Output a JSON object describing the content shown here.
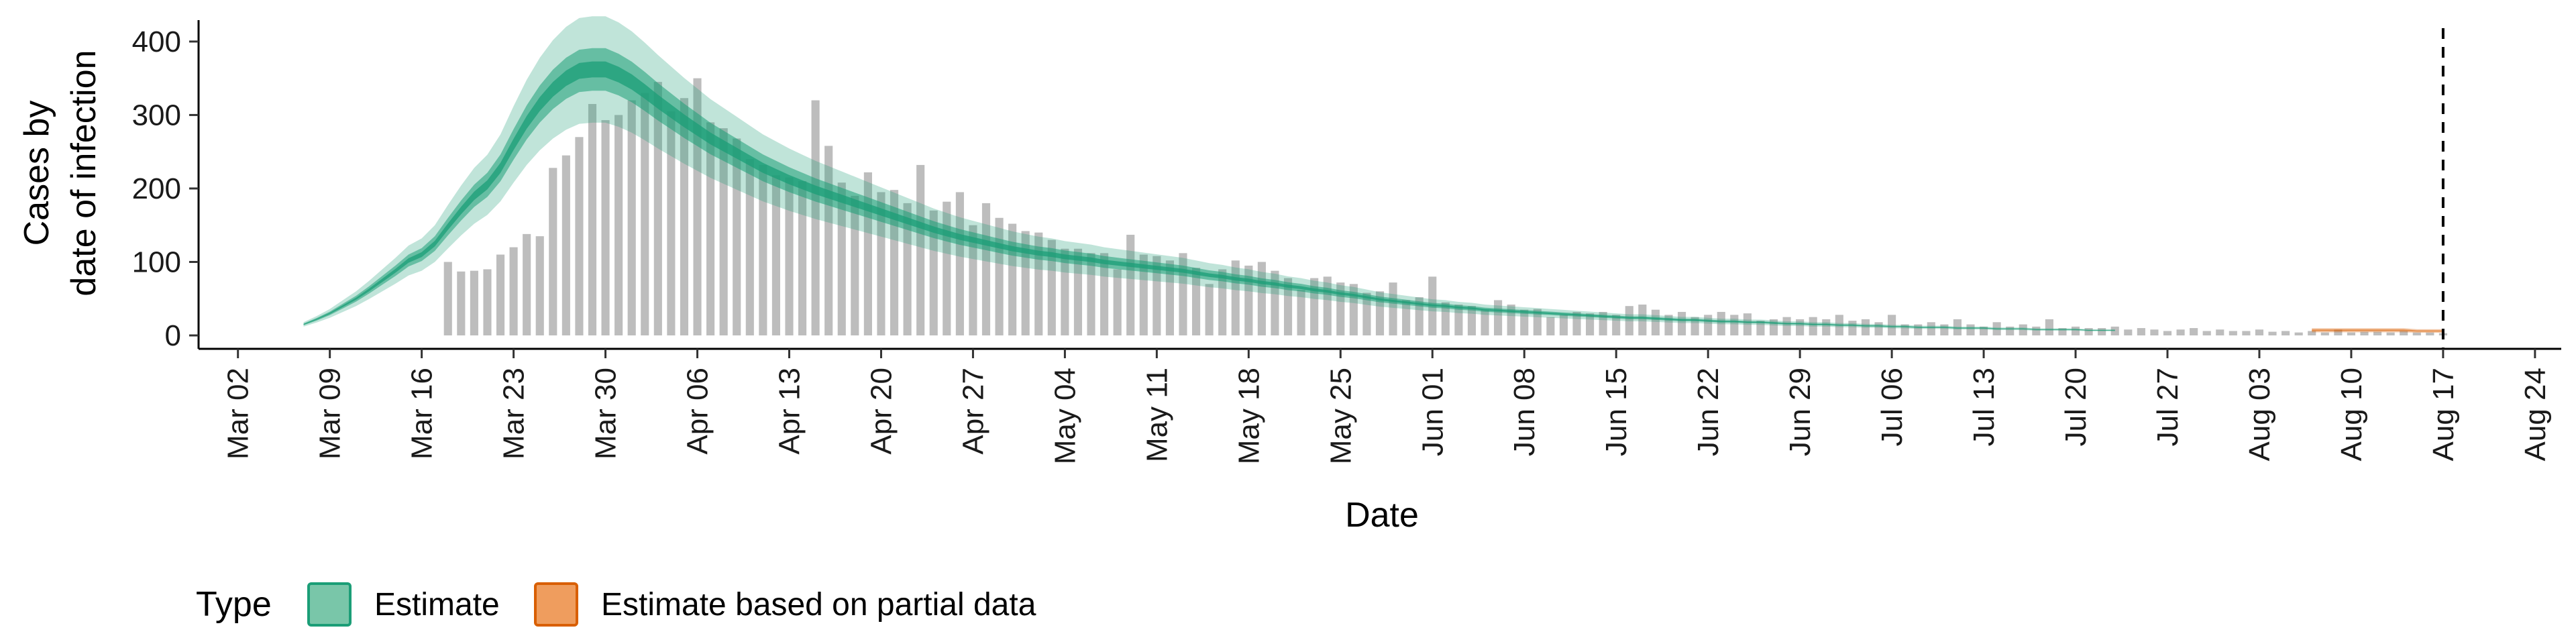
{
  "chart_data": {
    "type": "bar",
    "xlabel": "Date",
    "ylabel_line1": "Cases by",
    "ylabel_line2": "date of infection",
    "ylim": [
      0,
      420
    ],
    "yticks": [
      0,
      100,
      200,
      300,
      400
    ],
    "x_start": "2020-02-28",
    "x_end": "2020-08-26",
    "xticks": [
      {
        "date": "2020-03-02",
        "label": "Mar 02"
      },
      {
        "date": "2020-03-09",
        "label": "Mar 09"
      },
      {
        "date": "2020-03-16",
        "label": "Mar 16"
      },
      {
        "date": "2020-03-23",
        "label": "Mar 23"
      },
      {
        "date": "2020-03-30",
        "label": "Mar 30"
      },
      {
        "date": "2020-04-06",
        "label": "Apr 06"
      },
      {
        "date": "2020-04-13",
        "label": "Apr 13"
      },
      {
        "date": "2020-04-20",
        "label": "Apr 20"
      },
      {
        "date": "2020-04-27",
        "label": "Apr 27"
      },
      {
        "date": "2020-05-04",
        "label": "May 04"
      },
      {
        "date": "2020-05-11",
        "label": "May 11"
      },
      {
        "date": "2020-05-18",
        "label": "May 18"
      },
      {
        "date": "2020-05-25",
        "label": "May 25"
      },
      {
        "date": "2020-06-01",
        "label": "Jun 01"
      },
      {
        "date": "2020-06-08",
        "label": "Jun 08"
      },
      {
        "date": "2020-06-15",
        "label": "Jun 15"
      },
      {
        "date": "2020-06-22",
        "label": "Jun 22"
      },
      {
        "date": "2020-06-29",
        "label": "Jun 29"
      },
      {
        "date": "2020-07-06",
        "label": "Jul 06"
      },
      {
        "date": "2020-07-13",
        "label": "Jul 13"
      },
      {
        "date": "2020-07-20",
        "label": "Jul 20"
      },
      {
        "date": "2020-07-27",
        "label": "Jul 27"
      },
      {
        "date": "2020-08-03",
        "label": "Aug 03"
      },
      {
        "date": "2020-08-10",
        "label": "Aug 10"
      },
      {
        "date": "2020-08-17",
        "label": "Aug 17"
      },
      {
        "date": "2020-08-24",
        "label": "Aug 24"
      }
    ],
    "bars": {
      "start_date": "2020-03-18",
      "color": "#bdbdbd",
      "values": [
        100,
        87,
        88,
        90,
        110,
        120,
        138,
        135,
        228,
        245,
        270,
        315,
        293,
        300,
        320,
        330,
        345,
        305,
        323,
        350,
        290,
        282,
        268,
        240,
        232,
        218,
        215,
        210,
        320,
        258,
        208,
        190,
        222,
        195,
        198,
        180,
        232,
        170,
        182,
        195,
        150,
        180,
        160,
        152,
        142,
        140,
        130,
        118,
        118,
        112,
        112,
        90,
        137,
        110,
        108,
        102,
        112,
        92,
        70,
        90,
        102,
        95,
        100,
        88,
        78,
        62,
        78,
        80,
        72,
        70,
        58,
        60,
        72,
        48,
        52,
        80,
        45,
        42,
        40,
        35,
        48,
        42,
        35,
        36,
        25,
        28,
        32,
        30,
        32,
        28,
        40,
        42,
        35,
        28,
        32,
        25,
        28,
        32,
        28,
        30,
        20,
        22,
        25,
        22,
        25,
        22,
        28,
        20,
        22,
        18,
        28,
        15,
        15,
        18,
        15,
        22,
        15,
        12,
        18,
        12,
        15,
        12,
        22,
        10,
        12,
        10,
        10,
        12,
        8,
        10,
        8,
        6,
        8,
        10,
        6,
        8,
        6,
        6,
        8,
        5,
        6,
        4,
        6,
        4,
        8,
        4,
        5,
        5,
        4,
        6,
        4,
        4,
        3
      ]
    },
    "estimate": {
      "start_date": "2020-03-07",
      "color": "#1b9e77",
      "median": [
        15,
        22,
        30,
        40,
        50,
        62,
        75,
        88,
        102,
        110,
        125,
        148,
        170,
        190,
        205,
        228,
        260,
        290,
        315,
        335,
        350,
        360,
        362,
        362,
        355,
        345,
        332,
        318,
        305,
        292,
        280,
        268,
        258,
        248,
        238,
        228,
        220,
        212,
        205,
        198,
        192,
        186,
        180,
        174,
        168,
        162,
        156,
        150,
        144,
        139,
        134,
        130,
        126,
        122,
        118,
        115,
        112,
        110,
        107,
        105,
        103,
        100,
        98,
        96,
        94,
        92,
        90,
        88,
        85,
        82,
        80,
        77,
        75,
        72,
        70,
        67,
        65,
        62,
        60,
        57,
        55,
        52,
        49,
        47,
        45,
        43,
        41,
        40,
        38,
        37,
        35,
        34,
        33,
        32,
        31,
        30,
        29,
        28,
        27,
        26,
        25,
        24,
        24,
        23,
        22,
        21,
        21,
        20,
        19,
        19,
        18,
        18,
        17,
        16,
        16,
        15,
        15,
        14,
        14,
        13,
        13,
        12,
        12,
        11,
        11,
        11,
        10,
        10,
        10,
        9,
        9,
        9,
        8,
        8,
        8,
        8,
        7,
        7,
        7
      ],
      "lower90_ratio": 0.8,
      "upper90_ratio": 1.2,
      "lower50_ratio": 0.92,
      "upper50_ratio": 1.08
    },
    "partial_estimate": {
      "start_date": "2020-08-07",
      "color": "#d95f02",
      "median": [
        7,
        7,
        7,
        7,
        7,
        7,
        7,
        7,
        6,
        6,
        6
      ]
    },
    "vline_date": "2020-08-17"
  },
  "legend": {
    "title": "Type",
    "items": [
      {
        "label": "Estimate",
        "fill": "#79c6a9",
        "stroke": "#1b9e77"
      },
      {
        "label": "Estimate based on partial data",
        "fill": "#ef9d5e",
        "stroke": "#d95f02"
      }
    ]
  }
}
